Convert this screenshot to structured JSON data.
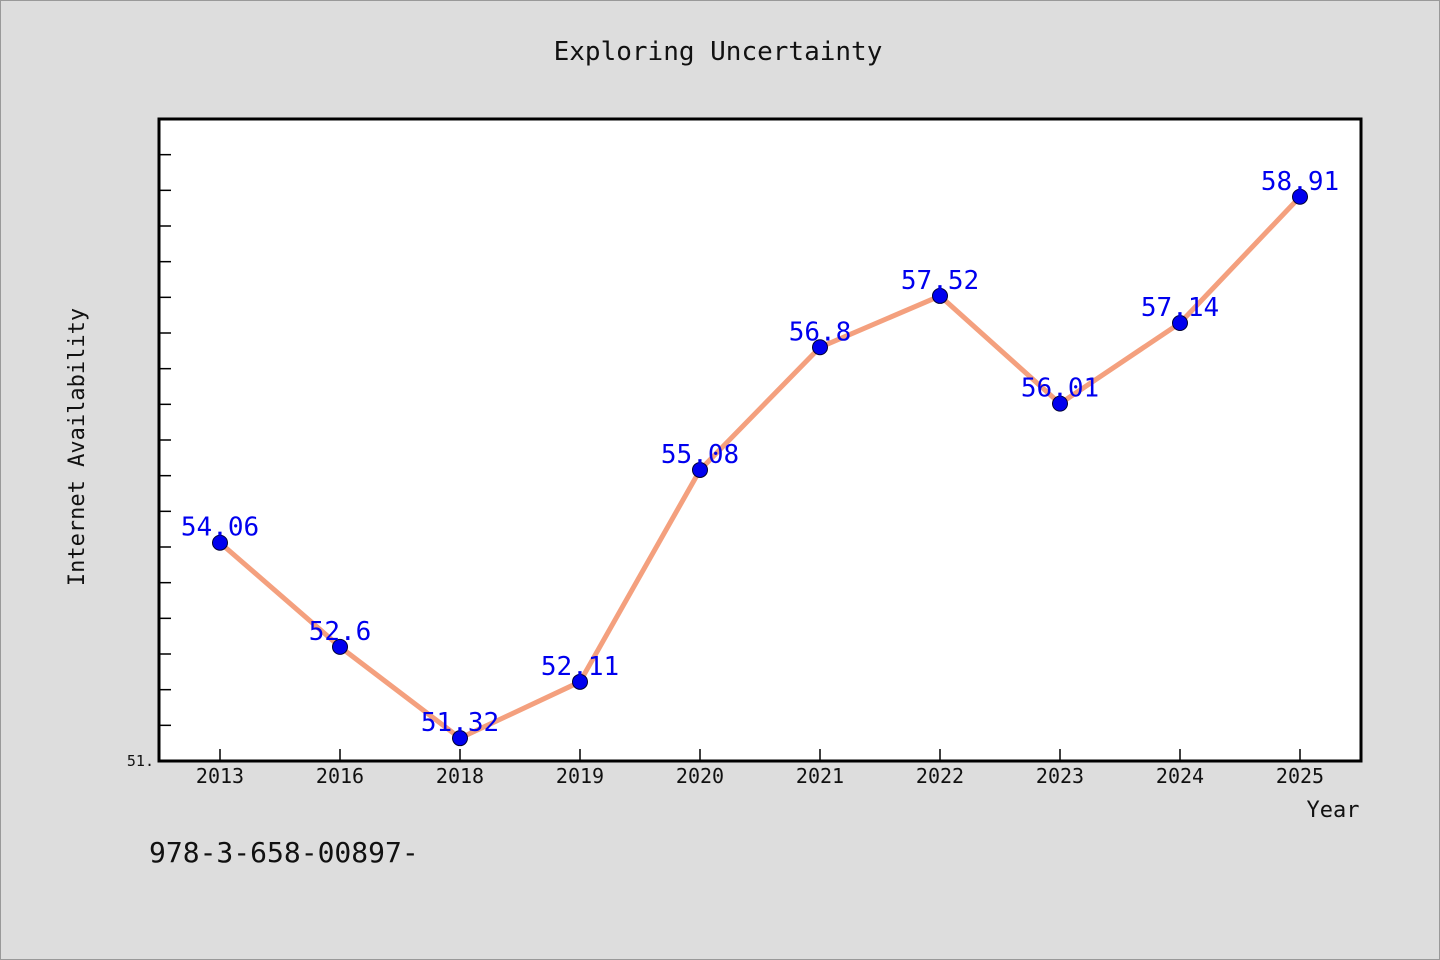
{
  "chart_data": {
    "type": "line",
    "title": "Exploring Uncertainty",
    "xlabel": "Year",
    "ylabel": "Internet Availability",
    "categories": [
      "2013",
      "2016",
      "2018",
      "2019",
      "2020",
      "2021",
      "2022",
      "2023",
      "2024",
      "2025"
    ],
    "series": [
      {
        "values": [
          54.06,
          52.6,
          51.32,
          52.11,
          55.08,
          56.8,
          57.52,
          56.01,
          57.14,
          58.91
        ],
        "labels": [
          "54.06",
          "52.6",
          "51.32",
          "52.11",
          "55.08",
          "56.8",
          "57.52",
          "56.01",
          "57.14",
          "58.91"
        ]
      }
    ],
    "ylim": [
      51.0,
      60.0
    ],
    "y_tick_labels": [
      "51."
    ],
    "grid": false,
    "colors": {
      "line": "#f4a07e",
      "marker": "#0000ee",
      "label": "#0000ee",
      "background": "#dddddd",
      "plot_background": "#ffffff"
    }
  },
  "footer_text": "978-3-658-00897-"
}
